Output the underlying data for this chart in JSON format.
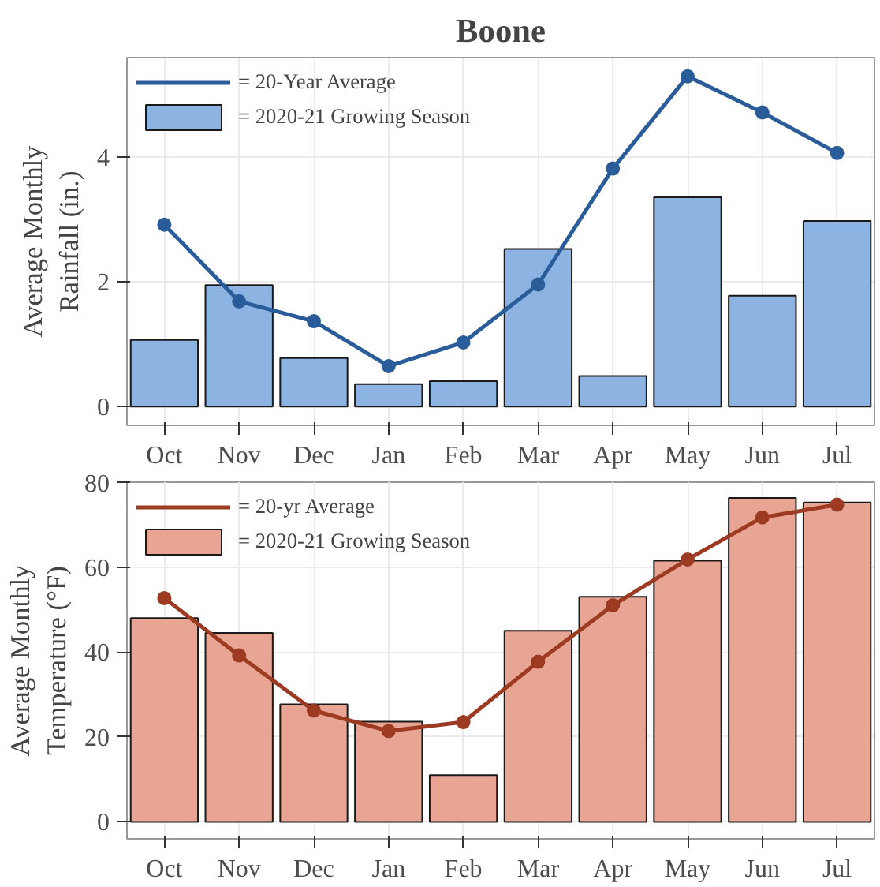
{
  "chart_data": [
    {
      "type": "bar",
      "title": "Boone",
      "ylabel": "Average Monthly\nRainfall (in.)",
      "categories": [
        "Oct",
        "Nov",
        "Dec",
        "Jan",
        "Feb",
        "Mar",
        "Apr",
        "May",
        "Jun",
        "Jul"
      ],
      "series": [
        {
          "name": "= 2020-21 Growing Season",
          "color": "#8db3e2",
          "values": [
            1.07,
            1.95,
            0.78,
            0.36,
            0.41,
            2.53,
            0.49,
            3.36,
            1.78,
            2.98
          ]
        },
        {
          "name": "= 20-Year Average",
          "type": "line",
          "color": "#2b5c9a",
          "values": [
            2.92,
            1.69,
            1.37,
            0.65,
            1.03,
            1.96,
            3.82,
            5.3,
            4.72,
            4.07
          ]
        }
      ],
      "ylim": [
        -0.3,
        5.6
      ],
      "yticks": [
        0,
        2,
        4
      ],
      "grid": true,
      "legend": "top left",
      "marker": "circle"
    },
    {
      "type": "bar",
      "ylabel": "Average Monthly\nTemperature (°F)",
      "categories": [
        "Oct",
        "Nov",
        "Dec",
        "Jan",
        "Feb",
        "Mar",
        "Apr",
        "May",
        "Jun",
        "Jul"
      ],
      "series": [
        {
          "name": "= 2020-21 Growing Season",
          "color": "#e8a593",
          "values": [
            48,
            44.5,
            27.7,
            23.6,
            11,
            45,
            53,
            61.5,
            76.3,
            75.2
          ]
        },
        {
          "name": "= 20-yr Average",
          "type": "line",
          "color": "#9c3a22",
          "values": [
            52.7,
            39.2,
            26.2,
            21.4,
            23.5,
            37.7,
            51,
            61.8,
            71.7,
            74.7
          ]
        }
      ],
      "ylim": [
        -4,
        80
      ],
      "yticks": [
        0,
        20,
        40,
        60,
        80
      ],
      "grid": true,
      "legend": "top left",
      "marker": "circle"
    }
  ]
}
